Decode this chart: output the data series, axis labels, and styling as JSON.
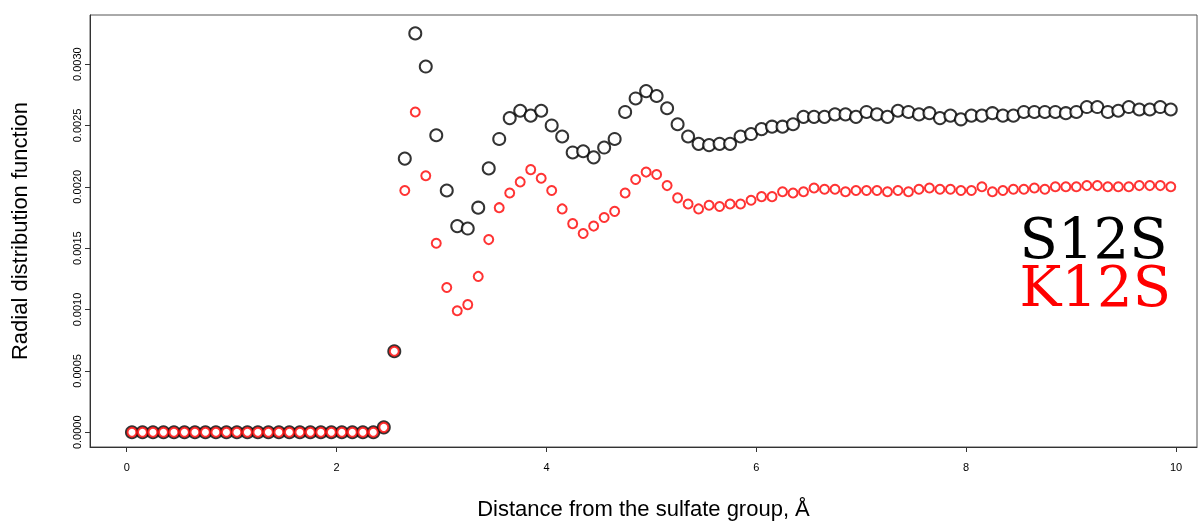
{
  "chart_data": {
    "type": "scatter",
    "xlabel": "Distance from the sulfate group, Å",
    "ylabel": "Radial distribution function",
    "x": [
      0.05,
      0.15,
      0.25,
      0.35,
      0.45,
      0.55,
      0.65,
      0.75,
      0.85,
      0.95,
      1.05,
      1.15,
      1.25,
      1.35,
      1.45,
      1.55,
      1.65,
      1.75,
      1.85,
      1.95,
      2.05,
      2.15,
      2.25,
      2.35,
      2.45,
      2.55,
      2.65,
      2.75,
      2.85,
      2.95,
      3.05,
      3.15,
      3.25,
      3.35,
      3.45,
      3.55,
      3.65,
      3.75,
      3.85,
      3.95,
      4.05,
      4.15,
      4.25,
      4.35,
      4.45,
      4.55,
      4.65,
      4.75,
      4.85,
      4.95,
      5.05,
      5.15,
      5.25,
      5.35,
      5.45,
      5.55,
      5.65,
      5.75,
      5.85,
      5.95,
      6.05,
      6.15,
      6.25,
      6.35,
      6.45,
      6.55,
      6.65,
      6.75,
      6.85,
      6.95,
      7.05,
      7.15,
      7.25,
      7.35,
      7.45,
      7.55,
      7.65,
      7.75,
      7.85,
      7.95,
      8.05,
      8.15,
      8.25,
      8.35,
      8.45,
      8.55,
      8.65,
      8.75,
      8.85,
      8.95,
      9.05,
      9.15,
      9.25,
      9.35,
      9.45,
      9.55,
      9.65,
      9.75,
      9.85,
      9.95
    ],
    "series": [
      {
        "name": "S12S",
        "color": "#000000",
        "values": [
          0,
          0,
          0,
          0,
          0,
          0,
          0,
          0,
          0,
          0,
          0,
          0,
          0,
          0,
          0,
          0,
          0,
          0,
          0,
          0,
          0,
          0,
          0,
          0,
          4e-05,
          0.00066,
          0.00223,
          0.00325,
          0.00298,
          0.00242,
          0.00197,
          0.00168,
          0.00166,
          0.00183,
          0.00215,
          0.00239,
          0.00256,
          0.00262,
          0.00258,
          0.00262,
          0.0025,
          0.00241,
          0.00228,
          0.00229,
          0.00224,
          0.00232,
          0.00239,
          0.00261,
          0.00272,
          0.00278,
          0.00274,
          0.00264,
          0.00251,
          0.00241,
          0.00235,
          0.00234,
          0.00235,
          0.00235,
          0.00241,
          0.00243,
          0.00247,
          0.00249,
          0.00249,
          0.00251,
          0.00257,
          0.00257,
          0.00257,
          0.00259,
          0.00259,
          0.00257,
          0.00261,
          0.00259,
          0.00257,
          0.00262,
          0.00261,
          0.00259,
          0.0026,
          0.00256,
          0.00258,
          0.00255,
          0.00258,
          0.00258,
          0.0026,
          0.00258,
          0.00258,
          0.00261,
          0.00261,
          0.00261,
          0.00261,
          0.0026,
          0.00261,
          0.00265,
          0.00265,
          0.00261,
          0.00262,
          0.00265,
          0.00263,
          0.00263,
          0.00265,
          0.00263
        ]
      },
      {
        "name": "K12S",
        "color": "#ff0000",
        "values": [
          0,
          0,
          0,
          0,
          0,
          0,
          0,
          0,
          0,
          0,
          0,
          0,
          0,
          0,
          0,
          0,
          0,
          0,
          0,
          0,
          0,
          0,
          0,
          0,
          4e-05,
          0.00066,
          0.00197,
          0.00261,
          0.00209,
          0.00154,
          0.00118,
          0.00099,
          0.00104,
          0.00127,
          0.00157,
          0.00183,
          0.00195,
          0.00204,
          0.00214,
          0.00207,
          0.00197,
          0.00182,
          0.0017,
          0.00162,
          0.00168,
          0.00175,
          0.0018,
          0.00195,
          0.00206,
          0.00212,
          0.0021,
          0.00201,
          0.00191,
          0.00186,
          0.00182,
          0.00185,
          0.00184,
          0.00186,
          0.00186,
          0.00189,
          0.00192,
          0.00192,
          0.00196,
          0.00195,
          0.00196,
          0.00199,
          0.00198,
          0.00198,
          0.00196,
          0.00197,
          0.00197,
          0.00197,
          0.00196,
          0.00197,
          0.00196,
          0.00198,
          0.00199,
          0.00198,
          0.00198,
          0.00197,
          0.00197,
          0.002,
          0.00196,
          0.00197,
          0.00198,
          0.00198,
          0.00199,
          0.00198,
          0.002,
          0.002,
          0.002,
          0.00201,
          0.00201,
          0.002,
          0.002,
          0.002,
          0.00201,
          0.00201,
          0.00201,
          0.002
        ]
      }
    ],
    "xlim": [
      -0.35,
      10.2
    ],
    "xticks": [
      0,
      2,
      4,
      6,
      8,
      10
    ],
    "ylim": [
      -0.00012,
      0.0034
    ],
    "yticks": [
      {
        "value": 0,
        "label": "0.0000"
      },
      {
        "value": 0.0005,
        "label": "0.0005"
      },
      {
        "value": 0.001,
        "label": "0.0010"
      },
      {
        "value": 0.0015,
        "label": "0.0015"
      },
      {
        "value": 0.002,
        "label": "0.0020"
      },
      {
        "value": 0.0025,
        "label": "0.0025"
      },
      {
        "value": 0.003,
        "label": "0.0030"
      }
    ],
    "grid": false,
    "legend": "right",
    "marker": "circle"
  }
}
